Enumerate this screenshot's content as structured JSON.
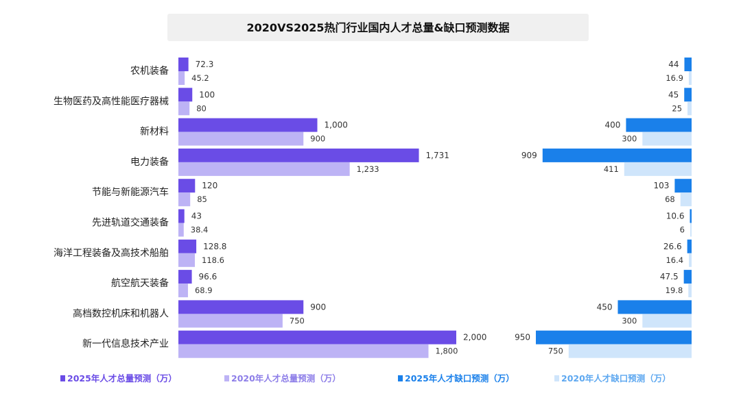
{
  "chart_data": {
    "type": "bar",
    "orientation": "horizontal",
    "title": "2020VS2025热门行业国内人才总量&缺口预测数据",
    "categories": [
      "农机装备",
      "生物医药及高性能医疗器械",
      "新材料",
      "电力装备",
      "节能与新能源汽车",
      "先进轨道交通装备",
      "海洋工程装备及高技术船舶",
      "航空航天装备",
      "高档数控机床和机器人",
      "新一代信息技术产业"
    ],
    "panels": [
      {
        "side": "left",
        "direction": "left-to-right",
        "series": [
          {
            "name": "2025年人才总量预测（万）",
            "color": "#6a4ce6",
            "values": [
              72.3,
              100,
              1000,
              1731,
              120,
              43,
              128.8,
              96.6,
              900,
              2000
            ],
            "labels": [
              "72.3",
              "100",
              "1,000",
              "1,731",
              "120",
              "43",
              "128.8",
              "96.6",
              "900",
              "2,000"
            ]
          },
          {
            "name": "2020年人才总量预测（万）",
            "color": "#bdb3f5",
            "values": [
              45.2,
              80,
              900,
              1233,
              85,
              38.4,
              118.6,
              68.9,
              750,
              1800
            ],
            "labels": [
              "45.2",
              "80",
              "900",
              "1,233",
              "85",
              "38.4",
              "118.6",
              "68.9",
              "750",
              "1,800"
            ]
          }
        ]
      },
      {
        "side": "right",
        "direction": "right-to-left",
        "series": [
          {
            "name": "2025年人才缺口预测（万）",
            "color": "#1a80ea",
            "values": [
              44,
              45,
              400,
              909,
              103,
              10.6,
              26.6,
              47.5,
              450,
              950
            ],
            "labels": [
              "44",
              "45",
              "400",
              "909",
              "103",
              "10.6",
              "26.6",
              "47.5",
              "450",
              "950"
            ]
          },
          {
            "name": "2020年人才缺口预测（万）",
            "color": "#cfe5fb",
            "values": [
              16.9,
              25,
              300,
              411,
              68,
              6,
              16.4,
              19.8,
              300,
              750
            ],
            "labels": [
              "16.9",
              "25",
              "300",
              "411",
              "68",
              "6",
              "16.4",
              "19.8",
              "300",
              "750"
            ]
          }
        ]
      }
    ],
    "legend": {
      "position": "bottom",
      "items": [
        {
          "label": "2025年人才总量预测（万）",
          "color": "#6a4ce6",
          "text_color": "#6a4ce6"
        },
        {
          "label": "2020年人才总量预测（万）",
          "color": "#bdb3f5",
          "text_color": "#8d7ee8"
        },
        {
          "label": "2025年人才缺口预测（万）",
          "color": "#1a80ea",
          "text_color": "#1a80ea"
        },
        {
          "label": "2020年人才缺口预测（万）",
          "color": "#cfe5fb",
          "text_color": "#5ea8f0"
        }
      ]
    },
    "grid": false
  }
}
